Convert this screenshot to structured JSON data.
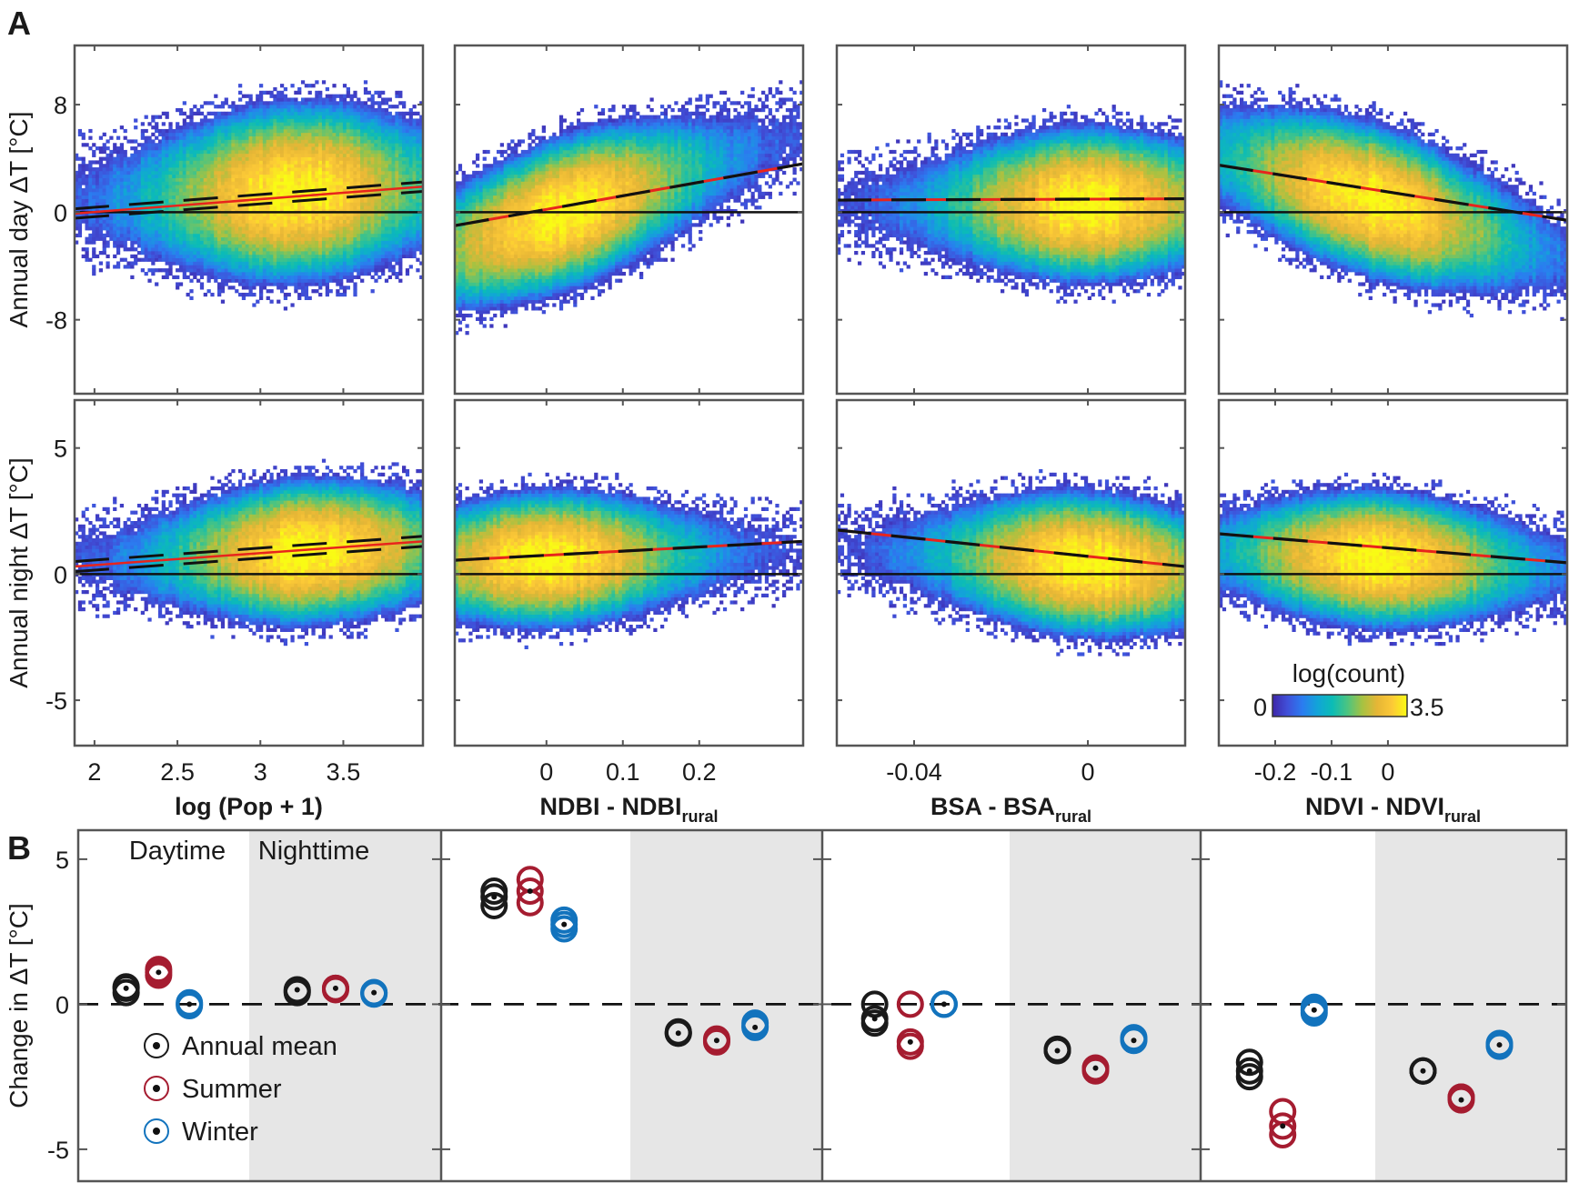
{
  "figure": {
    "panel_a_letter": "A",
    "panel_b_letter": "B"
  },
  "chart_data": [
    {
      "type": "heatmap",
      "panel": "A",
      "description": "2D histograms (density heatmaps) of urban-rural temperature difference vs. urban predictor, with linear fit (red) and confidence bounds (black dashed)",
      "colorbar": {
        "label": "log(count)",
        "min_label": "0",
        "max_label": "3.5",
        "range": [
          0,
          3.5
        ],
        "colormap": [
          "#3e26a8",
          "#4050d9",
          "#2b7cf0",
          "#12a4d8",
          "#0bbcb6",
          "#4bc481",
          "#a6c242",
          "#e6b636",
          "#fcc937",
          "#f9fb14"
        ]
      },
      "rows": [
        {
          "ylabel": "Annual day ΔT [°C]",
          "yticks": [
            8,
            0,
            -8
          ],
          "ylim": [
            -13.5,
            12.4
          ]
        },
        {
          "ylabel": "Annual night ΔT [°C]",
          "yticks": [
            5,
            0,
            -5
          ],
          "ylim": [
            -6.8,
            6.9
          ]
        }
      ],
      "columns": [
        {
          "xlabel_main": "log (Pop + 1)",
          "xlabel_sub": "",
          "xticks": [
            2,
            2.5,
            3,
            3.5
          ],
          "xtick_labels": [
            "2",
            "2.5",
            "3",
            "3.5"
          ],
          "xlim": [
            1.88,
            3.98
          ],
          "day": {
            "fit": [
              [
                1.88,
                -0.1
              ],
              [
                3.98,
                1.9
              ]
            ],
            "ci_width": 0.35,
            "center_x": 3.2,
            "center_y": 1.5,
            "spread_y": 4.2,
            "style": "solid-red-with-ci"
          },
          "night": {
            "fit": [
              [
                1.88,
                0.3
              ],
              [
                3.98,
                1.3
              ]
            ],
            "ci_width": 0.2,
            "center_x": 3.3,
            "center_y": 0.9,
            "spread_y": 1.8,
            "style": "solid-red-with-ci"
          }
        },
        {
          "xlabel_main": "NDBI - NDBI",
          "xlabel_sub": "rural",
          "xticks": [
            0,
            0.1,
            0.2
          ],
          "xtick_labels": [
            "0",
            "0.1",
            "0.2"
          ],
          "xlim": [
            -0.12,
            0.336
          ],
          "day": {
            "fit": [
              [
                -0.12,
                -1.0
              ],
              [
                0.336,
                3.6
              ]
            ],
            "ci_width": 0.0,
            "center_x": 0.02,
            "center_y": 1.0,
            "spread_y": 3.6,
            "slope_band": 0.9,
            "style": "dashed-red-black"
          },
          "night": {
            "fit": [
              [
                -0.12,
                0.55
              ],
              [
                0.336,
                1.3
              ]
            ],
            "ci_width": 0.0,
            "center_x": 0.0,
            "center_y": 0.6,
            "spread_y": 1.7,
            "style": "dashed-red-black"
          }
        },
        {
          "xlabel_main": "BSA - BSA",
          "xlabel_sub": "rural",
          "xticks": [
            -0.04,
            0
          ],
          "xtick_labels": [
            "-0.04",
            "0"
          ],
          "xlim": [
            -0.0578,
            0.0224
          ],
          "day": {
            "fit": [
              [
                -0.0578,
                0.9
              ],
              [
                0.0224,
                1.0
              ]
            ],
            "ci_width": 0.0,
            "center_x": 0.0,
            "center_y": 0.6,
            "spread_y": 3.6,
            "style": "dashed-red-black"
          },
          "night": {
            "fit": [
              [
                -0.0578,
                1.75
              ],
              [
                0.0224,
                0.3
              ]
            ],
            "ci_width": 0.0,
            "center_x": 0.0,
            "center_y": 0.4,
            "spread_y": 1.8,
            "style": "dashed-red-black"
          }
        },
        {
          "xlabel_main": "NDVI - NDVI",
          "xlabel_sub": "rural",
          "xticks": [
            -0.2,
            -0.1,
            0
          ],
          "xtick_labels": [
            "-0.2",
            "-0.1",
            "0"
          ],
          "xlim": [
            -0.3,
            0.318
          ],
          "day": {
            "fit": [
              [
                -0.3,
                3.5
              ],
              [
                0.318,
                -0.6
              ]
            ],
            "ci_width": 0.0,
            "center_x": -0.03,
            "center_y": 0.6,
            "spread_y": 3.6,
            "slope_band": -0.8,
            "style": "dashed-red-black"
          },
          "night": {
            "fit": [
              [
                -0.3,
                1.6
              ],
              [
                0.318,
                0.45
              ]
            ],
            "ci_width": 0.0,
            "center_x": -0.02,
            "center_y": 0.6,
            "spread_y": 1.7,
            "style": "dashed-red-black"
          }
        }
      ]
    },
    {
      "type": "scatter",
      "panel": "B",
      "ylabel": "Change in ΔT [°C]",
      "ylim": [
        -6.1,
        6.0
      ],
      "yticks": [
        5,
        0,
        -5
      ],
      "ytick_labels": [
        "5",
        "0",
        "-5"
      ],
      "section_labels": {
        "day": "Daytime",
        "night": "Nighttime"
      },
      "predictors": [
        "log (Pop + 1)",
        "NDBI - NDBI_rural",
        "BSA - BSA_rural",
        "NDVI - NDVI_rural"
      ],
      "legend": [
        {
          "label": "Annual mean",
          "color": "#1a1a1a"
        },
        {
          "label": "Summer",
          "color": "#a51c30"
        },
        {
          "label": "Winter",
          "color": "#1273bd"
        }
      ],
      "series": [
        {
          "name": "Annual mean",
          "color": "#1a1a1a",
          "values": {
            "pop": {
              "day": [
                0.4,
                0.55,
                0.6
              ],
              "night": [
                0.4,
                0.5,
                0.45
              ]
            },
            "ndbi": {
              "day": [
                3.4,
                3.7,
                3.9
              ],
              "night": [
                -1.0,
                -1.0,
                -0.95
              ]
            },
            "bsa": {
              "day": [
                0.0,
                -0.5,
                -0.65
              ],
              "night": [
                -1.6,
                -1.6,
                -1.55
              ]
            },
            "ndvi": {
              "day": [
                -2.0,
                -2.3,
                -2.5
              ],
              "night": [
                -2.3,
                -2.3,
                -2.3
              ]
            }
          }
        },
        {
          "name": "Summer",
          "color": "#a51c30",
          "values": {
            "pop": {
              "day": [
                1.0,
                1.1,
                1.2
              ],
              "night": [
                0.5,
                0.55,
                0.55
              ]
            },
            "ndbi": {
              "day": [
                3.5,
                3.9,
                4.3
              ],
              "night": [
                -1.3,
                -1.25,
                -1.2
              ]
            },
            "bsa": {
              "day": [
                0.0,
                -1.3,
                -1.45
              ],
              "night": [
                -2.3,
                -2.2,
                -2.2
              ]
            },
            "ndvi": {
              "day": [
                -3.7,
                -4.2,
                -4.5
              ],
              "night": [
                -3.2,
                -3.3,
                -3.2
              ]
            }
          }
        },
        {
          "name": "Winter",
          "color": "#1273bd",
          "values": {
            "pop": {
              "day": [
                -0.05,
                0.0,
                0.05
              ],
              "night": [
                0.35,
                0.4,
                0.4
              ]
            },
            "ndbi": {
              "day": [
                2.6,
                2.75,
                2.9
              ],
              "night": [
                -0.75,
                -0.8,
                -0.65
              ]
            },
            "bsa": {
              "day": [
                0.0,
                0.0,
                0.0
              ],
              "night": [
                -1.2,
                -1.25,
                -1.15
              ]
            },
            "ndvi": {
              "day": [
                -0.1,
                -0.2,
                -0.3
              ],
              "night": [
                -1.45,
                -1.4,
                -1.35
              ]
            }
          }
        }
      ]
    }
  ]
}
